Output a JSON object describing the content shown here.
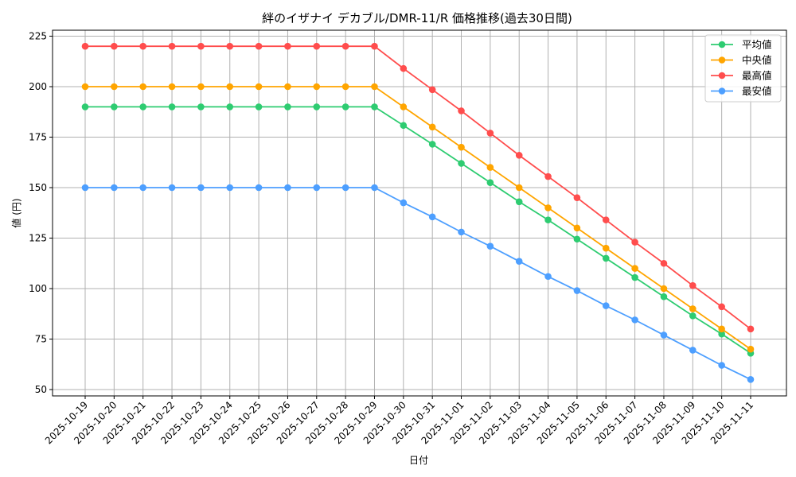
{
  "chart_data": {
    "type": "line",
    "title": "絆のイザナイ デカブル/DMR-11/R 価格推移(過去30日間)",
    "xlabel": "日付",
    "ylabel": "値 (円)",
    "ylim": [
      47,
      228
    ],
    "yticks": [
      50,
      75,
      100,
      125,
      150,
      175,
      200,
      225
    ],
    "grid": true,
    "legend_position": "upper right",
    "x": [
      "2025-10-19",
      "2025-10-20",
      "2025-10-21",
      "2025-10-22",
      "2025-10-23",
      "2025-10-24",
      "2025-10-25",
      "2025-10-26",
      "2025-10-27",
      "2025-10-28",
      "2025-10-29",
      "2025-10-30",
      "2025-10-31",
      "2025-11-01",
      "2025-11-02",
      "2025-11-03",
      "2025-11-04",
      "2025-11-05",
      "2025-11-06",
      "2025-11-07",
      "2025-11-08",
      "2025-11-09",
      "2025-11-10",
      "2025-11-11"
    ],
    "series": [
      {
        "name": "平均値",
        "color": "#2ecc71",
        "values": [
          190,
          190,
          190,
          190,
          190,
          190,
          190,
          190,
          190,
          190,
          190,
          180.8,
          171.5,
          162,
          152.5,
          143,
          134,
          124.5,
          115,
          105.5,
          96,
          86.5,
          77.5,
          68
        ]
      },
      {
        "name": "中央値",
        "color": "#ffa500",
        "values": [
          200,
          200,
          200,
          200,
          200,
          200,
          200,
          200,
          200,
          200,
          200,
          190,
          180,
          170,
          160,
          150,
          140,
          130,
          120,
          110,
          100,
          90,
          80,
          70
        ]
      },
      {
        "name": "最高値",
        "color": "#ff4d4d",
        "values": [
          220,
          220,
          220,
          220,
          220,
          220,
          220,
          220,
          220,
          220,
          220,
          209,
          198.5,
          188,
          177,
          166,
          155.5,
          145,
          134,
          123,
          112.5,
          101.5,
          91,
          80
        ]
      },
      {
        "name": "最安値",
        "color": "#4d9fff",
        "values": [
          150,
          150,
          150,
          150,
          150,
          150,
          150,
          150,
          150,
          150,
          150,
          142.5,
          135.5,
          128,
          121,
          113.5,
          106,
          99,
          91.5,
          84.5,
          77,
          69.5,
          62,
          55
        ]
      }
    ]
  }
}
